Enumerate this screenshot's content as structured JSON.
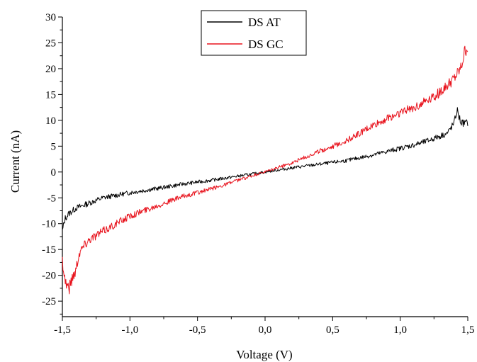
{
  "chart_data": {
    "type": "line",
    "xlabel": "Voltage (V)",
    "ylabel": "Current (nA)",
    "xlim": [
      -1.5,
      1.5
    ],
    "ylim": [
      -28,
      30
    ],
    "x_ticks": [
      -1.5,
      -1.0,
      -0.5,
      0.0,
      0.5,
      1.0,
      1.5
    ],
    "x_tick_labels": [
      "-1,5",
      "-1,0",
      "-0,5",
      "0,0",
      "0,5",
      "1,0",
      "1,5"
    ],
    "y_ticks": [
      -25,
      -20,
      -15,
      -10,
      -5,
      0,
      5,
      10,
      15,
      20,
      25,
      30
    ],
    "y_tick_labels": [
      "-25",
      "-20",
      "-15",
      "-10",
      "-5",
      "0",
      "5",
      "10",
      "15",
      "20",
      "25",
      "30"
    ],
    "grid": false,
    "legend_position": "top-center",
    "series": [
      {
        "name": "DS AT",
        "color": "#000000",
        "x": [
          -1.5,
          -1.48,
          -1.45,
          -1.4,
          -1.35,
          -1.3,
          -1.2,
          -1.0,
          -0.8,
          -0.6,
          -0.4,
          -0.2,
          0.0,
          0.2,
          0.4,
          0.6,
          0.8,
          1.0,
          1.1,
          1.2,
          1.3,
          1.35,
          1.4,
          1.42,
          1.45,
          1.5
        ],
        "y": [
          -11.5,
          -9.0,
          -8.0,
          -7.0,
          -6.5,
          -6.0,
          -5.0,
          -4.0,
          -3.2,
          -2.3,
          -1.6,
          -0.8,
          0.0,
          0.8,
          1.5,
          2.2,
          3.3,
          4.6,
          5.2,
          6.0,
          7.0,
          7.5,
          9.5,
          12.0,
          9.5,
          9.5
        ]
      },
      {
        "name": "DS GC",
        "color": "#e8141e",
        "x": [
          -1.5,
          -1.48,
          -1.45,
          -1.42,
          -1.4,
          -1.38,
          -1.35,
          -1.3,
          -1.2,
          -1.1,
          -1.0,
          -0.9,
          -0.8,
          -0.6,
          -0.4,
          -0.2,
          0.0,
          0.2,
          0.4,
          0.6,
          0.8,
          1.0,
          1.1,
          1.2,
          1.3,
          1.4,
          1.45,
          1.48,
          1.5
        ],
        "y": [
          -17.0,
          -21.0,
          -22.5,
          -20.0,
          -19.0,
          -16.0,
          -14.5,
          -13.0,
          -11.5,
          -10.0,
          -8.5,
          -7.5,
          -6.5,
          -4.7,
          -3.3,
          -1.6,
          0.0,
          1.8,
          4.0,
          6.0,
          9.0,
          11.5,
          12.5,
          14.0,
          15.5,
          18.0,
          20.0,
          23.5,
          24.0
        ]
      }
    ]
  }
}
